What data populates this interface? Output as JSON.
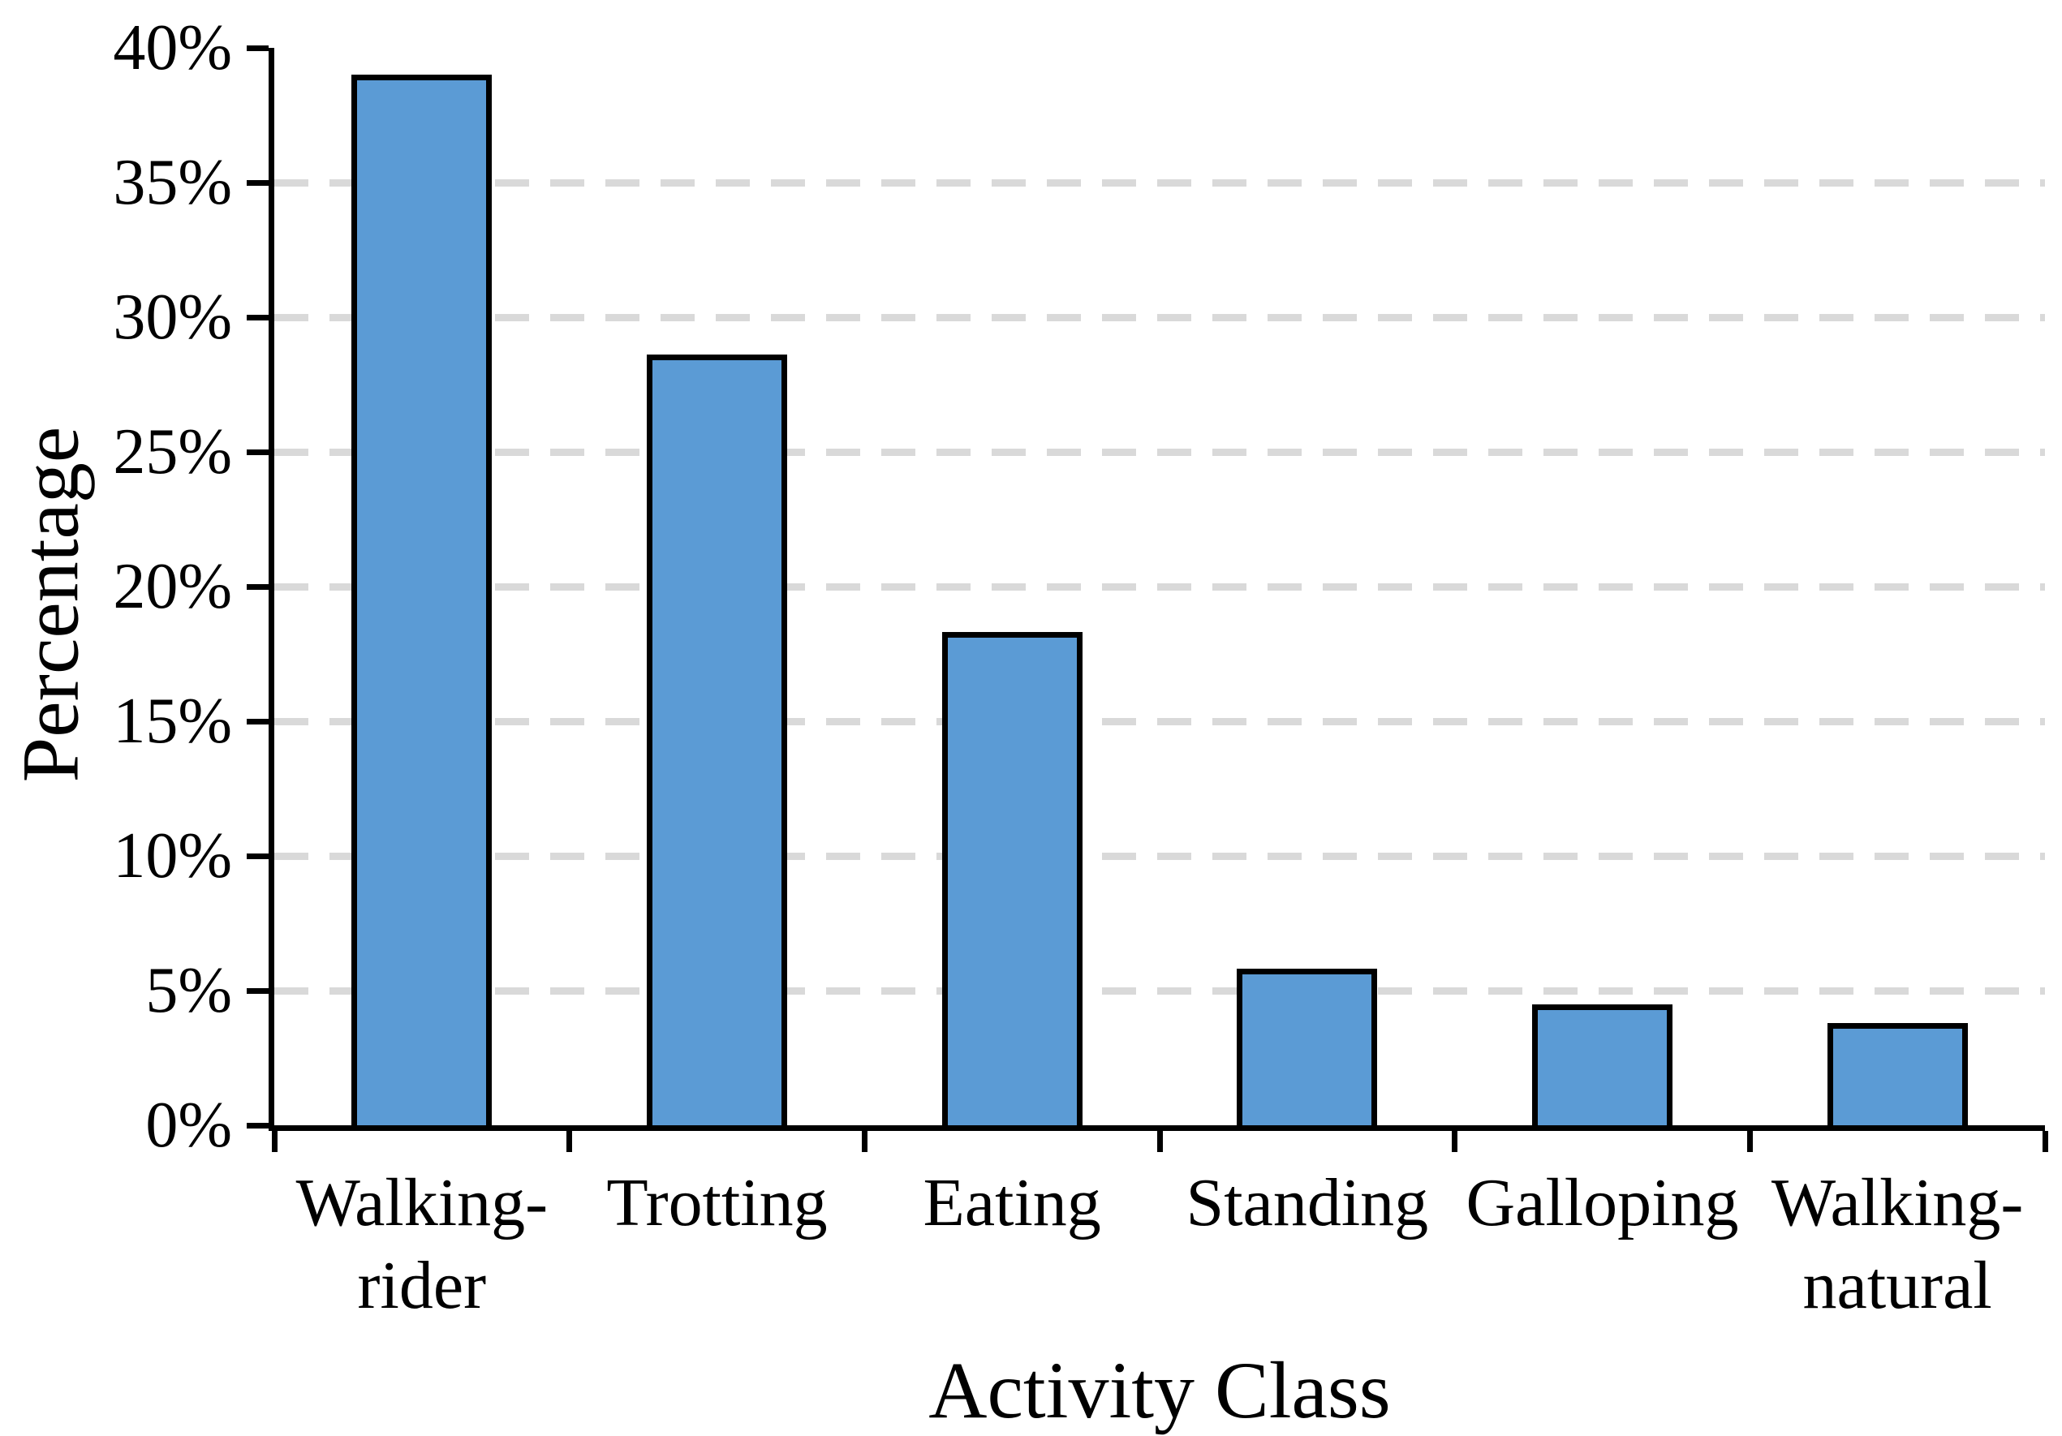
{
  "chart_data": {
    "type": "bar",
    "title": "",
    "categories": [
      "Walking-rider",
      "Trotting",
      "Eating",
      "Standing",
      "Galloping",
      "Walking-natural"
    ],
    "values": [
      39,
      28.6,
      18.3,
      5.8,
      4.5,
      3.8
    ],
    "value_unit": "%",
    "xlabel": "Activity Class",
    "ylabel": "Percentage",
    "ylim": [
      0,
      40
    ],
    "ytick_step": 5,
    "ytick_labels": [
      "0%",
      "5%",
      "10%",
      "15%",
      "20%",
      "25%",
      "30%",
      "35%",
      "40%"
    ],
    "gridlines": {
      "horizontal": true,
      "style": "dashed",
      "at_percent": [
        5,
        10,
        15,
        20,
        25,
        30,
        35
      ]
    },
    "legend": "none",
    "colors": {
      "bar_fill": "#5B9BD5",
      "bar_border": "#000000",
      "gridline": "#D9D9D9",
      "axis": "#000000",
      "text": "#000000",
      "background": "#FFFFFF"
    }
  }
}
